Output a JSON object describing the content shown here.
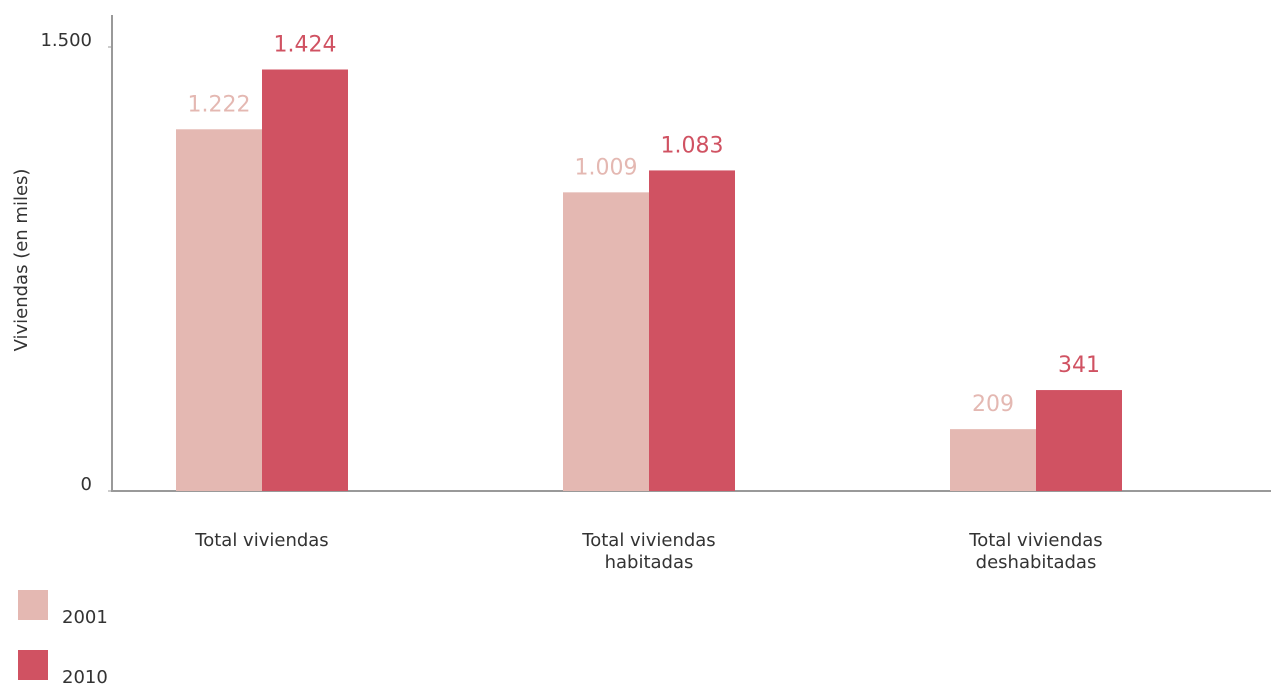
{
  "chart_data": {
    "type": "bar",
    "y_label": "Viviendas (en miles)",
    "categories": [
      "Total viviendas",
      "Total viviendas\nhabitadas",
      "Total viviendas\ndeshabitadas"
    ],
    "series": [
      {
        "name": "2001",
        "color": "#e4b8b2",
        "values": [
          1222,
          1009,
          209
        ],
        "value_labels": [
          "1.222",
          "1.009",
          "209"
        ]
      },
      {
        "name": "2010",
        "color": "#d05262",
        "values": [
          1424,
          1083,
          341
        ],
        "value_labels": [
          "1.424",
          "1.083",
          "341"
        ]
      }
    ],
    "ylim": [
      0,
      1500
    ],
    "yticks": [
      0,
      {
        "value": 1500,
        "label": "1.500"
      }
    ],
    "grid": false
  }
}
